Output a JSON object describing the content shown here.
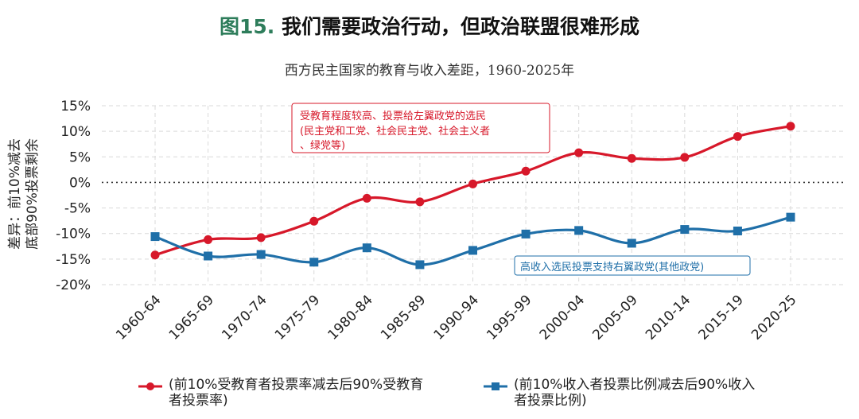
{
  "header": {
    "fig_label": "图15.",
    "title": "我们需要政治行动，但政治联盟很难形成",
    "subtitle": "西方民主国家的教育与收入差距，1960-2025年"
  },
  "colors": {
    "red": "#d7182a",
    "blue": "#1f6fa8",
    "grid": "#d9d9d9"
  },
  "chart_data": {
    "type": "line",
    "ylabel_line1": "差异：前10%减去",
    "ylabel_line2": "底部90%投票剩余",
    "ylim": [
      -20,
      15
    ],
    "yticks": [
      15,
      10,
      5,
      0,
      -5,
      -10,
      -15,
      -20
    ],
    "ytick_labels": [
      "15%",
      "10%",
      "5%",
      "0%",
      "-5%",
      "-10%",
      "-15%",
      "-20%"
    ],
    "categories": [
      "1960-64",
      "1965-69",
      "1970-74",
      "1975-79",
      "1980-84",
      "1985-89",
      "1990-94",
      "1995-99",
      "2000-04",
      "2005-09",
      "2010-14",
      "2015-19",
      "2020-25"
    ],
    "grid": true,
    "series": [
      {
        "name": "(前10%受教育者投票率减去后90%受教育者投票率)",
        "legend_line1": "(前10%受教育者投票率减去后90%受教育",
        "legend_line2": "者投票率)",
        "color": "#d7182a",
        "marker": "circle",
        "values": [
          -14.2,
          -11.2,
          -10.8,
          -7.6,
          -3.1,
          -3.8,
          -0.3,
          2.2,
          5.8,
          4.7,
          4.9,
          9.0,
          11.0
        ]
      },
      {
        "name": "(前10%收入者投票比例减去后90%收入者投票比例)",
        "legend_line1": "(前10%收入者投票比例减去后90%收入",
        "legend_line2": "者投票比例)",
        "color": "#1f6fa8",
        "marker": "square",
        "values": [
          -10.6,
          -14.4,
          -14.1,
          -15.6,
          -12.8,
          -16.1,
          -13.3,
          -10.1,
          -9.4,
          -11.9,
          -9.2,
          -9.5,
          -6.8
        ]
      }
    ],
    "annotations": [
      {
        "line1": "受教育程度较高、投票给左翼政党的选民",
        "line2": "(民主党和工党、社会民主党、社会主义者",
        "line3": "、绿党等)",
        "color": "#d7182a"
      },
      {
        "line1": "高收入选民投票支持右翼政党(其他政党)",
        "color": "#1f6fa8"
      }
    ]
  }
}
